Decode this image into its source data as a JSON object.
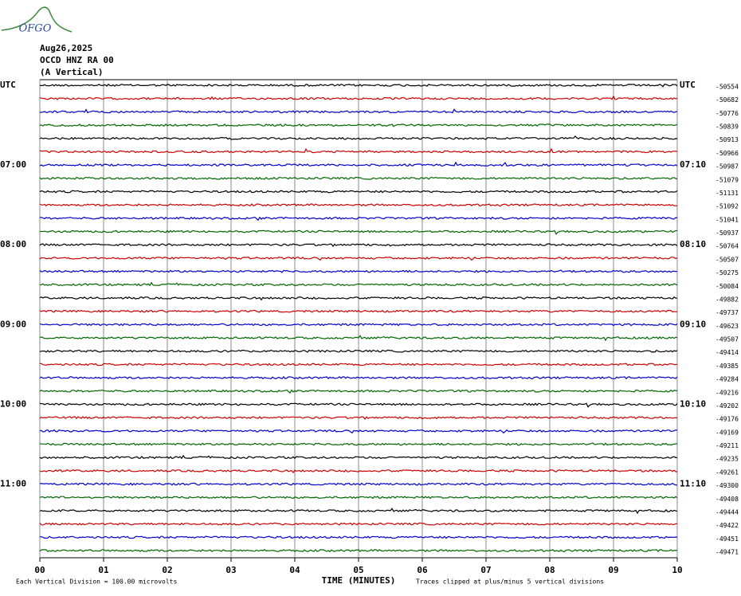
{
  "logo": "OFGO",
  "chart_data": {
    "type": "helicorder",
    "date": "Aug26,2025",
    "station": "OCCD HNZ RA 00",
    "component": "(A Vertical)",
    "left_labels": [
      "UTC",
      "07:00",
      "08:00",
      "09:00",
      "10:00",
      "11:00"
    ],
    "right_labels": [
      "UTC",
      "07:10",
      "08:10",
      "09:10",
      "10:10",
      "11:10"
    ],
    "xlabel": "TIME (MINUTES)",
    "scale_note": "Each Vertical Division =  100.00 microvolts",
    "clip_note": "Traces clipped at plus/minus 5 vertical divisions",
    "xlim": [
      0,
      10
    ],
    "xticks": [
      {
        "value": 0,
        "label": "00"
      },
      {
        "value": 1,
        "label": "01"
      },
      {
        "value": 2,
        "label": "02"
      },
      {
        "value": 3,
        "label": "03"
      },
      {
        "value": 4,
        "label": "04"
      },
      {
        "value": 5,
        "label": "05"
      },
      {
        "value": 6,
        "label": "06"
      },
      {
        "value": 7,
        "label": "07"
      },
      {
        "value": 8,
        "label": "08"
      },
      {
        "value": 9,
        "label": "09"
      },
      {
        "value": 10,
        "label": "10"
      }
    ],
    "grid": true,
    "colors": [
      "#000000",
      "#cc0000",
      "#0000cc",
      "#006600"
    ],
    "offsets": [
      -50554,
      -50682,
      -50776,
      -50839,
      -50913,
      -50966,
      -50987,
      -51079,
      -51131,
      -51092,
      -51041,
      -50937,
      -50764,
      -50507,
      -50275,
      -50084,
      -49882,
      -49737,
      -49623,
      -49507,
      -49414,
      -49385,
      -49284,
      -49216,
      -49202,
      -49176,
      -49169,
      -49211,
      -49235,
      -49261,
      -49300,
      -49408,
      -49444,
      -49422,
      -49451,
      -49471
    ]
  }
}
